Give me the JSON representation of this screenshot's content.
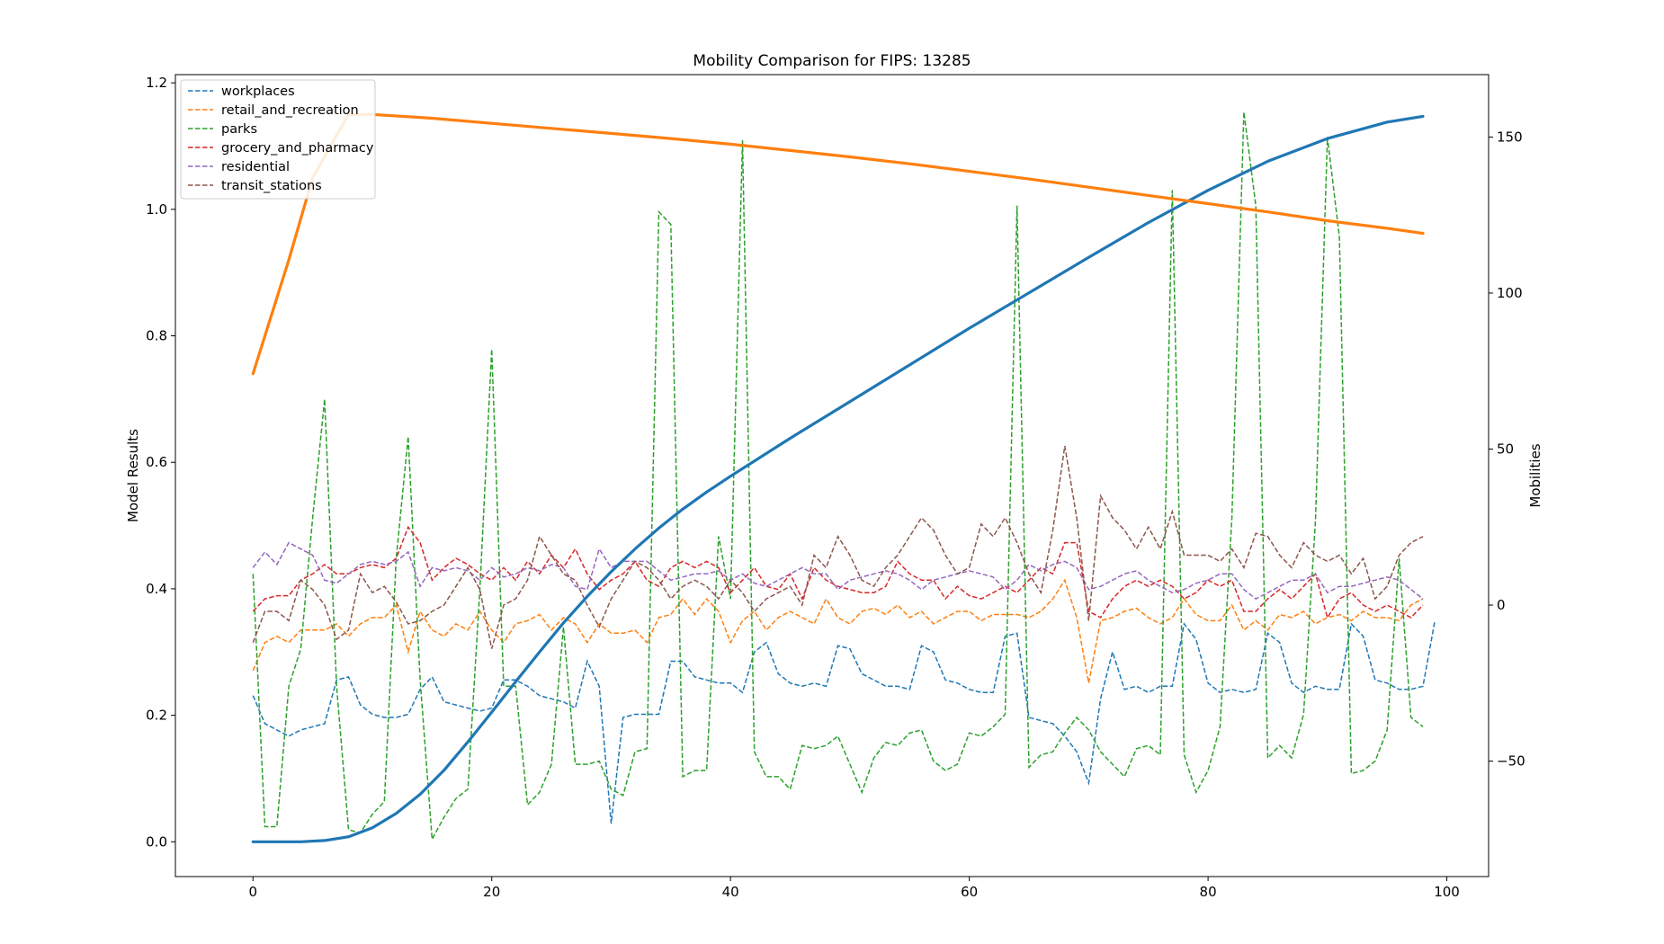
{
  "chart_data": {
    "type": "line",
    "title": "Mobility Comparison for FIPS: 13285",
    "xlabel": "",
    "ylabel_left": "Model Results",
    "ylabel_right": "Mobilities",
    "xlim": [
      -6.5,
      103.5
    ],
    "ylim_left": [
      -0.055,
      1.213
    ],
    "ylim_right": [
      -87,
      170
    ],
    "xticks": [
      0,
      20,
      40,
      60,
      80,
      100
    ],
    "yticks_left": [
      0.0,
      0.2,
      0.4,
      0.6,
      0.8,
      1.0,
      1.2
    ],
    "yticks_right": [
      -50,
      0,
      50,
      100,
      150
    ],
    "legend_position": "upper-left",
    "grid": false,
    "x_range": [
      0,
      98
    ],
    "model_series": [
      {
        "color": "#1f77b4",
        "style": "solid",
        "axis": "left",
        "x": [
          0,
          4,
          6,
          8,
          10,
          12,
          14,
          16,
          18,
          20,
          22,
          24,
          26,
          28,
          30,
          32,
          34,
          36,
          38,
          40,
          45,
          50,
          55,
          60,
          65,
          70,
          75,
          80,
          85,
          90,
          95,
          98
        ],
        "values": [
          0.0,
          0.0,
          0.002,
          0.008,
          0.022,
          0.045,
          0.075,
          0.113,
          0.158,
          0.205,
          0.253,
          0.3,
          0.346,
          0.388,
          0.427,
          0.463,
          0.496,
          0.526,
          0.553,
          0.578,
          0.638,
          0.696,
          0.754,
          0.812,
          0.868,
          0.924,
          0.979,
          1.03,
          1.076,
          1.112,
          1.138,
          1.147
        ]
      },
      {
        "color": "#ff7f0e",
        "style": "solid",
        "axis": "left",
        "x": [
          0,
          3,
          5,
          8,
          10,
          15,
          20,
          25,
          30,
          35,
          40,
          45,
          50,
          55,
          60,
          65,
          70,
          75,
          80,
          85,
          90,
          95,
          98
        ],
        "values": [
          0.74,
          0.92,
          1.05,
          1.15,
          1.15,
          1.144,
          1.136,
          1.128,
          1.12,
          1.112,
          1.103,
          1.093,
          1.083,
          1.072,
          1.06,
          1.048,
          1.035,
          1.022,
          1.009,
          0.996,
          0.982,
          0.97,
          0.962
        ]
      }
    ],
    "series": [
      {
        "name": "workplaces",
        "color": "#1f77b4",
        "values": [
          -29,
          -38,
          -40,
          -42,
          -40,
          -39,
          -38,
          -24,
          -23,
          -32,
          -35,
          -36,
          -36,
          -35,
          -27,
          -23,
          -31,
          -32,
          -33,
          -34,
          -33,
          -24,
          -24,
          -26,
          -29,
          -30,
          -31,
          -33,
          -18,
          -26,
          -70,
          -36,
          -35,
          -35,
          -35,
          -18,
          -18,
          -23,
          -24,
          -25,
          -25,
          -28,
          -15,
          -12,
          -22,
          -25,
          -26,
          -25,
          -26,
          -13,
          -14,
          -22,
          -24,
          -26,
          -26,
          -27,
          -13,
          -15,
          -24,
          -25,
          -27,
          -28,
          -28,
          -10,
          -9,
          -36,
          -37,
          -38,
          -42,
          -47,
          -57,
          -30,
          -15,
          -27,
          -26,
          -28,
          -26,
          -26,
          -6,
          -11,
          -25,
          -28,
          -27,
          -28,
          -27,
          -9,
          -12,
          -25,
          -28,
          -26,
          -27,
          -27,
          -6,
          -10,
          -24,
          -25,
          -27,
          -27,
          -26,
          -5
        ]
      },
      {
        "name": "retail_and_recreation",
        "color": "#ff7f0e",
        "values": [
          -21,
          -12,
          -10,
          -12,
          -8,
          -8,
          -8,
          -6,
          -10,
          -6,
          -4,
          -4,
          0,
          -15,
          -2,
          -8,
          -10,
          -6,
          -8,
          -2,
          -8,
          -12,
          -6,
          -5,
          -3,
          -8,
          -4,
          -6,
          -12,
          -6,
          -9,
          -9,
          -8,
          -12,
          -4,
          -3,
          2,
          -3,
          2,
          -2,
          -12,
          -5,
          -2,
          -8,
          -4,
          -2,
          -4,
          -6,
          2,
          -4,
          -6,
          -2,
          -1,
          -3,
          0,
          -4,
          -2,
          -6,
          -4,
          -2,
          -2,
          -5,
          -3,
          -3,
          -3,
          -4,
          -2,
          2,
          8,
          -4,
          -25,
          -5,
          -4,
          -2,
          -1,
          -4,
          -6,
          -4,
          2,
          -3,
          -5,
          -5,
          0,
          -8,
          -5,
          -8,
          -3,
          -4,
          -2,
          -6,
          -4,
          -3,
          -5,
          -2,
          -4,
          -4,
          -5,
          0,
          2
        ]
      },
      {
        "name": "parks",
        "color": "#2ca02c",
        "values": [
          10,
          -71,
          -71,
          -26,
          -14,
          28,
          66,
          -26,
          -72,
          -73,
          -67,
          -63,
          15,
          54,
          -24,
          -75,
          -68,
          -62,
          -59,
          5,
          82,
          -26,
          -26,
          -64,
          -60,
          -51,
          -7,
          -51,
          -51,
          -50,
          -59,
          -61,
          -47,
          -46,
          126,
          122,
          -55,
          -53,
          -53,
          22,
          2,
          149,
          -47,
          -55,
          -55,
          -59,
          -45,
          -46,
          -45,
          -42,
          -51,
          -60,
          -49,
          -44,
          -45,
          -41,
          -40,
          -50,
          -53,
          -51,
          -41,
          -42,
          -39,
          -35,
          128,
          -52,
          -48,
          -47,
          -41,
          -36,
          -40,
          -47,
          -51,
          -55,
          -46,
          -45,
          -48,
          133,
          -48,
          -60,
          -53,
          -39,
          28,
          158,
          128,
          -49,
          -45,
          -49,
          -35,
          27,
          150,
          118,
          -54,
          -53,
          -50,
          -40,
          15,
          -36,
          -39
        ]
      },
      {
        "name": "grocery_and_pharmacy",
        "color": "#d62728",
        "values": [
          -2,
          2,
          3,
          3,
          8,
          10,
          13,
          10,
          10,
          12,
          13,
          12,
          15,
          25,
          20,
          8,
          12,
          15,
          13,
          10,
          8,
          12,
          8,
          14,
          10,
          16,
          12,
          18,
          10,
          5,
          8,
          10,
          14,
          8,
          6,
          12,
          14,
          12,
          14,
          12,
          4,
          8,
          12,
          6,
          5,
          10,
          2,
          12,
          8,
          6,
          5,
          4,
          4,
          6,
          14,
          10,
          8,
          8,
          2,
          6,
          3,
          2,
          4,
          6,
          4,
          8,
          12,
          10,
          20,
          20,
          -2,
          -4,
          2,
          6,
          8,
          6,
          8,
          6,
          2,
          4,
          8,
          6,
          8,
          -2,
          -2,
          2,
          5,
          2,
          6,
          10,
          -4,
          2,
          4,
          0,
          -2,
          0,
          -2,
          -4,
          0
        ]
      },
      {
        "name": "residential",
        "color": "#9467bd",
        "values": [
          12,
          17,
          13,
          20,
          18,
          16,
          8,
          7,
          10,
          13,
          14,
          13,
          14,
          17,
          6,
          12,
          11,
          12,
          11,
          8,
          12,
          9,
          10,
          12,
          11,
          13,
          12,
          6,
          5,
          18,
          12,
          14,
          14,
          14,
          11,
          8,
          9,
          10,
          10,
          11,
          8,
          10,
          7,
          6,
          8,
          10,
          12,
          10,
          10,
          5,
          8,
          9,
          10,
          11,
          10,
          8,
          5,
          8,
          9,
          10,
          11,
          10,
          9,
          5,
          8,
          13,
          11,
          13,
          14,
          12,
          5,
          6,
          8,
          10,
          11,
          8,
          6,
          4,
          5,
          7,
          8,
          10,
          10,
          5,
          2,
          4,
          6,
          8,
          8,
          10,
          4,
          6,
          6,
          7,
          8,
          9,
          8,
          5,
          2
        ]
      },
      {
        "name": "transit_stations",
        "color": "#8c564b",
        "values": [
          -12,
          -2,
          -2,
          -5,
          8,
          5,
          0,
          -11,
          -8,
          10,
          4,
          6,
          1,
          -6,
          -5,
          -2,
          0,
          6,
          12,
          5,
          -14,
          0,
          2,
          8,
          22,
          16,
          10,
          8,
          0,
          -7,
          2,
          8,
          14,
          12,
          8,
          2,
          6,
          8,
          6,
          2,
          8,
          4,
          -2,
          2,
          4,
          6,
          0,
          16,
          12,
          22,
          16,
          8,
          6,
          12,
          16,
          22,
          28,
          24,
          16,
          10,
          12,
          26,
          22,
          28,
          20,
          10,
          4,
          24,
          51,
          28,
          -5,
          35,
          28,
          24,
          18,
          25,
          18,
          30,
          16,
          16,
          16,
          14,
          18,
          12,
          23,
          22,
          16,
          12,
          20,
          16,
          14,
          16,
          10,
          15,
          2,
          6,
          16,
          20,
          22
        ]
      }
    ]
  }
}
